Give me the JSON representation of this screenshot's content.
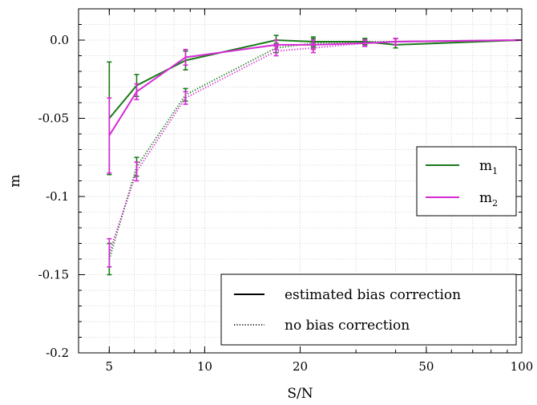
{
  "chart_data": {
    "type": "line",
    "xlabel": "S/N",
    "ylabel": "m",
    "xscale": "log",
    "xlim": [
      4,
      100
    ],
    "ylim": [
      -0.2,
      0.02
    ],
    "xticks": [
      5,
      10,
      20,
      50,
      100
    ],
    "xtick_labels": [
      "5",
      "10",
      "20",
      "50",
      "100"
    ],
    "yticks": [
      0.0,
      -0.05,
      -0.1,
      -0.15,
      -0.2
    ],
    "ytick_labels": [
      "0.0",
      "-0.05",
      "-0.1",
      "-0.15",
      "-0.2"
    ],
    "grid": true,
    "x": [
      5,
      6.1,
      8.7,
      16.8,
      22,
      32,
      40,
      100
    ],
    "series": [
      {
        "name": "m1",
        "style": "solid",
        "color": "#1a7a1a",
        "values": [
          -0.05,
          -0.029,
          -0.013,
          0.0,
          -0.001,
          -0.001,
          -0.003,
          0.0
        ],
        "errors": [
          0.036,
          0.007,
          0.006,
          0.003,
          0.003,
          0.002,
          0.002,
          0.0
        ]
      },
      {
        "name": "m2",
        "style": "solid",
        "color": "#d62ad6",
        "values": [
          -0.061,
          -0.033,
          -0.011,
          -0.003,
          -0.003,
          -0.002,
          -0.001,
          0.0
        ],
        "errors": [
          0.024,
          0.005,
          0.005,
          0.003,
          0.003,
          0.002,
          0.002,
          0.0
        ]
      },
      {
        "name": "m1",
        "style": "dotted",
        "color": "#1a7a1a",
        "values": [
          -0.14,
          -0.081,
          -0.035,
          -0.005,
          -0.002,
          -0.001,
          -0.001,
          0.0
        ],
        "errors": [
          0.01,
          0.006,
          0.004,
          0.003,
          0.003,
          0.002,
          0.002,
          0.0
        ]
      },
      {
        "name": "m2",
        "style": "dotted",
        "color": "#d62ad6",
        "values": [
          -0.136,
          -0.084,
          -0.037,
          -0.007,
          -0.005,
          -0.002,
          -0.001,
          0.0
        ],
        "errors": [
          0.009,
          0.006,
          0.004,
          0.003,
          0.003,
          0.002,
          0.002,
          0.0
        ]
      }
    ],
    "legend_series": {
      "placement": "right-middle",
      "items": [
        {
          "label": "m",
          "sub": "1",
          "color": "#1a7a1a"
        },
        {
          "label": "m",
          "sub": "2",
          "color": "#d62ad6"
        }
      ]
    },
    "legend_style": {
      "placement": "bottom-right",
      "items": [
        {
          "label": "estimated bias correction",
          "style": "solid"
        },
        {
          "label": "no bias correction",
          "style": "dotted"
        }
      ]
    }
  }
}
